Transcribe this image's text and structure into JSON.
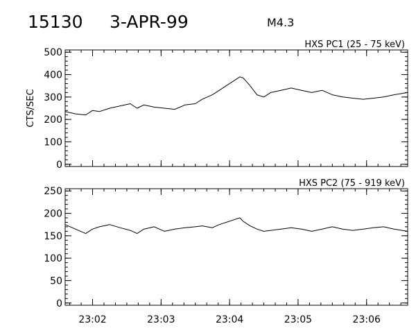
{
  "header": {
    "event_id": "15130",
    "date": "3-APR-99",
    "flare_class": "M4.3"
  },
  "chart_data": [
    {
      "type": "line",
      "title": "HXS PC1 (25 - 75 keV)",
      "ylabel": "CTS/SEC",
      "xlabel": "",
      "ylim": [
        -10,
        510
      ],
      "yticks": [
        0,
        100,
        200,
        300,
        400,
        500
      ],
      "xlim": [
        "23:01:36",
        "23:06:36"
      ],
      "xticks": [
        "23:02",
        "23:03",
        "23:04",
        "23:05",
        "23:06"
      ],
      "grid": false,
      "series": [
        {
          "time": [
            "23:01:36",
            "23:01:45",
            "23:01:54",
            "23:02:00",
            "23:02:06",
            "23:02:15",
            "23:02:24",
            "23:02:33",
            "23:02:39",
            "23:02:45",
            "23:02:54",
            "23:03:03",
            "23:03:12",
            "23:03:21",
            "23:03:30",
            "23:03:36",
            "23:03:45",
            "23:03:51",
            "23:03:57",
            "23:04:03",
            "23:04:09",
            "23:04:12",
            "23:04:18",
            "23:04:24",
            "23:04:30",
            "23:04:36",
            "23:04:45",
            "23:04:54",
            "23:05:03",
            "23:05:12",
            "23:05:21",
            "23:05:30",
            "23:05:39",
            "23:05:48",
            "23:05:57",
            "23:06:06",
            "23:06:15",
            "23:06:24",
            "23:06:36"
          ],
          "values": [
            235,
            225,
            220,
            240,
            235,
            250,
            260,
            270,
            250,
            265,
            255,
            250,
            245,
            265,
            270,
            290,
            310,
            330,
            350,
            370,
            390,
            385,
            350,
            310,
            300,
            320,
            330,
            340,
            330,
            320,
            330,
            310,
            300,
            295,
            290,
            295,
            300,
            310,
            320
          ]
        }
      ]
    },
    {
      "type": "line",
      "title": "HXS PC2 (75 - 919 keV)",
      "ylabel": "",
      "xlabel": "",
      "ylim": [
        -5,
        255
      ],
      "yticks": [
        0,
        50,
        100,
        150,
        200,
        250
      ],
      "xlim": [
        "23:01:36",
        "23:06:36"
      ],
      "xticks": [
        "23:02",
        "23:03",
        "23:04",
        "23:05",
        "23:06"
      ],
      "grid": false,
      "series": [
        {
          "time": [
            "23:01:36",
            "23:01:45",
            "23:01:54",
            "23:02:00",
            "23:02:06",
            "23:02:15",
            "23:02:24",
            "23:02:33",
            "23:02:39",
            "23:02:45",
            "23:02:54",
            "23:03:03",
            "23:03:12",
            "23:03:21",
            "23:03:30",
            "23:03:36",
            "23:03:45",
            "23:03:51",
            "23:03:57",
            "23:04:03",
            "23:04:09",
            "23:04:12",
            "23:04:18",
            "23:04:24",
            "23:04:30",
            "23:04:36",
            "23:04:45",
            "23:04:54",
            "23:05:03",
            "23:05:12",
            "23:05:21",
            "23:05:30",
            "23:05:39",
            "23:05:48",
            "23:05:57",
            "23:06:06",
            "23:06:15",
            "23:06:24",
            "23:06:36"
          ],
          "values": [
            175,
            165,
            155,
            165,
            170,
            175,
            168,
            162,
            155,
            165,
            170,
            160,
            165,
            168,
            170,
            172,
            168,
            175,
            180,
            185,
            190,
            182,
            172,
            165,
            160,
            162,
            165,
            168,
            165,
            160,
            165,
            170,
            165,
            162,
            165,
            168,
            170,
            165,
            160
          ]
        }
      ]
    }
  ]
}
